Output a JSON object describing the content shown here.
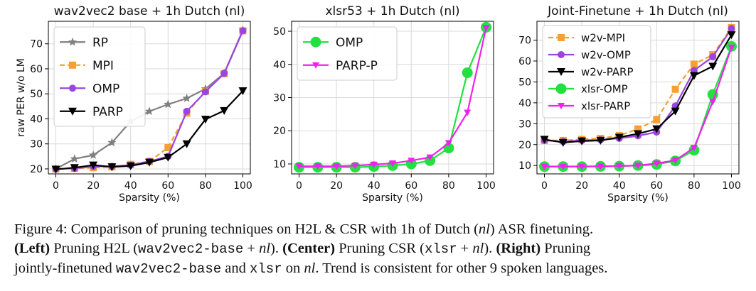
{
  "chart_data": [
    {
      "type": "line",
      "title": "wav2vec2 base + 1h Dutch (nl)",
      "xlabel": "Sparsity (%)",
      "ylabel": "raw PER w/o LM",
      "x": [
        0,
        10,
        20,
        30,
        40,
        50,
        60,
        70,
        80,
        90,
        100
      ],
      "xticks": [
        0,
        20,
        40,
        60,
        80,
        100
      ],
      "yticks": [
        20,
        30,
        40,
        50,
        60,
        70
      ],
      "xlim": [
        -4,
        104
      ],
      "ylim": [
        18,
        79
      ],
      "grid": true,
      "legend": "upper-left",
      "series": [
        {
          "name": "RP",
          "color": "#808080",
          "marker": "star",
          "dash": false,
          "values": [
            20,
            24,
            25.5,
            30.5,
            39,
            43,
            45.8,
            48.2,
            52,
            58.2,
            75.5
          ]
        },
        {
          "name": "MPI",
          "color": "#f5a030",
          "marker": "square",
          "dash": true,
          "values": [
            20,
            20.2,
            20.5,
            20.8,
            21.8,
            23,
            28.5,
            42.3,
            51,
            58,
            75.2
          ]
        },
        {
          "name": "OMP",
          "color": "#9b45e0",
          "marker": "circle",
          "dash": false,
          "values": [
            20,
            20.2,
            21,
            21,
            21.5,
            23,
            25,
            43,
            50.8,
            58.2,
            75.2
          ]
        },
        {
          "name": "PARP",
          "color": "#000000",
          "marker": "triangle",
          "dash": false,
          "values": [
            19.8,
            20.5,
            21.5,
            20.8,
            21.2,
            22.6,
            24.6,
            30,
            39.8,
            43.3,
            51.2
          ]
        }
      ]
    },
    {
      "type": "line",
      "title": "xlsr53 + 1h Dutch (nl)",
      "xlabel": "Sparsity (%)",
      "ylabel": "",
      "x": [
        0,
        10,
        20,
        30,
        40,
        50,
        60,
        70,
        80,
        90,
        100
      ],
      "xticks": [
        0,
        20,
        40,
        60,
        80,
        100
      ],
      "yticks": [
        10,
        20,
        30,
        40,
        50
      ],
      "xlim": [
        -4,
        104
      ],
      "ylim": [
        7,
        53
      ],
      "grid": true,
      "legend": "upper-left",
      "series": [
        {
          "name": "OMP",
          "color": "#22e040",
          "marker": "circle-large",
          "dash": false,
          "values": [
            9,
            9,
            9,
            9,
            9.2,
            9.5,
            10,
            11,
            14.8,
            37.5,
            51.2
          ]
        },
        {
          "name": "PARP-P",
          "color": "#f020f0",
          "marker": "triangle-small",
          "dash": false,
          "values": [
            9.3,
            9.3,
            9.3,
            9.5,
            9.8,
            10.2,
            11,
            12,
            16.3,
            25.5,
            51
          ]
        }
      ]
    },
    {
      "type": "line",
      "title": "Joint-Finetune + 1h Dutch (nl)",
      "xlabel": "Sparsity (%)",
      "ylabel": "",
      "x": [
        0,
        10,
        20,
        30,
        40,
        50,
        60,
        70,
        80,
        90,
        100
      ],
      "xticks": [
        0,
        20,
        40,
        60,
        80,
        100
      ],
      "yticks": [
        10,
        20,
        30,
        40,
        50,
        60,
        70
      ],
      "xlim": [
        -4,
        104
      ],
      "ylim": [
        6,
        79
      ],
      "grid": true,
      "legend": "upper-left",
      "series": [
        {
          "name": "w2v-MPI",
          "color": "#f5a030",
          "marker": "square",
          "dash": true,
          "values": [
            22,
            22,
            22.5,
            23,
            24.3,
            27.5,
            32,
            46.5,
            58.5,
            63,
            76
          ]
        },
        {
          "name": "w2v-OMP",
          "color": "#9b45e0",
          "marker": "circle",
          "dash": false,
          "values": [
            22,
            21.5,
            22,
            22.3,
            23,
            24.2,
            26,
            38.5,
            55.5,
            62,
            75.5
          ]
        },
        {
          "name": "w2v-PARP",
          "color": "#000000",
          "marker": "triangle",
          "dash": false,
          "values": [
            22.5,
            21,
            21.7,
            22,
            23.5,
            25.2,
            27.5,
            36,
            53,
            57.5,
            72.5
          ]
        },
        {
          "name": "xlsr-OMP",
          "color": "#22e040",
          "marker": "circle-large",
          "dash": false,
          "values": [
            9.5,
            9.5,
            9.5,
            9.6,
            9.7,
            10,
            10.5,
            12.2,
            17.3,
            44,
            67
          ]
        },
        {
          "name": "xlsr-PARP",
          "color": "#f020f0",
          "marker": "triangle-small",
          "dash": false,
          "values": [
            9.5,
            9.5,
            9.5,
            9.6,
            9.8,
            10,
            11,
            12.5,
            18.5,
            40.5,
            66.5
          ]
        }
      ]
    }
  ],
  "caption": {
    "line1": {
      "p1": "Figure 4: Comparison of pruning techniques on H2L & CSR with 1h of Dutch (",
      "p2": "nl",
      "p3": ") ASR finetuning."
    },
    "line2": {
      "p1": "(Left)",
      "p2": " Pruning H2L (",
      "p3": "wav2vec2-base",
      "p4": " + ",
      "p5": "nl",
      "p6": "). ",
      "p7": "(Center)",
      "p8": " Pruning CSR (",
      "p9": "xlsr",
      "p10": " + ",
      "p11": "nl",
      "p12": "). ",
      "p13": "(Right)",
      "p14": " Pruning"
    },
    "line3": {
      "p1": "jointly-finetuned ",
      "p2": "wav2vec2-base",
      "p3": " and ",
      "p4": "xlsr",
      "p5": " on ",
      "p6": "nl",
      "p7": ". Trend is consistent for other 9 spoken languages."
    }
  }
}
